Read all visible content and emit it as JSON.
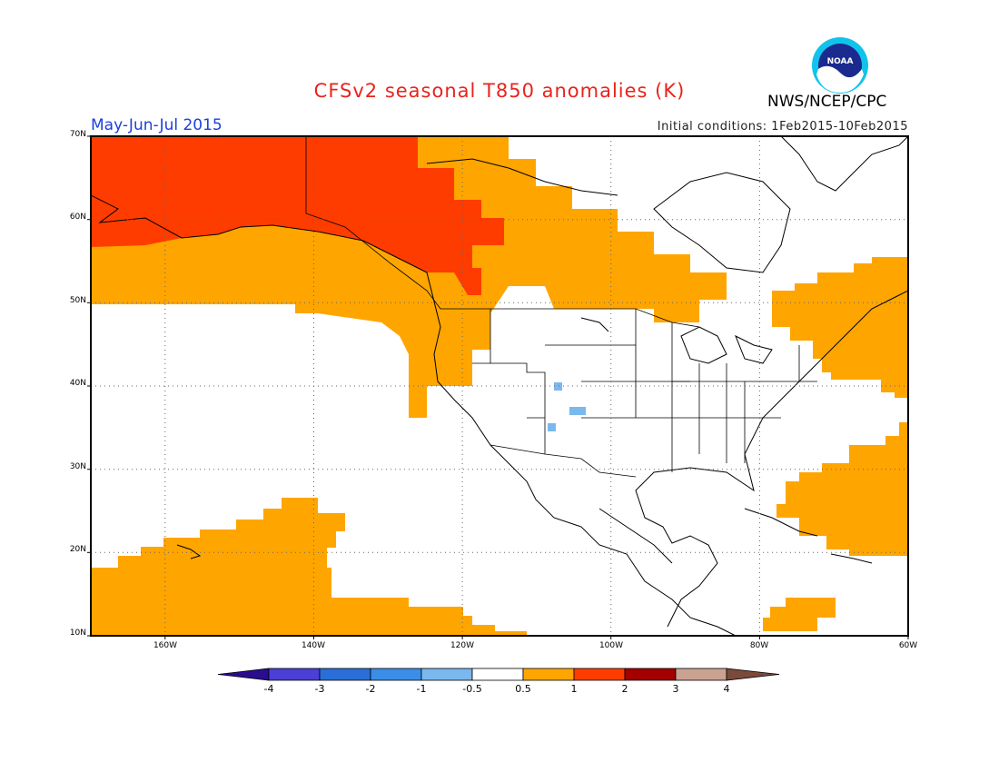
{
  "title": "CFSv2 seasonal T850 anomalies (K)",
  "period": "May-Jun-Jul 2015",
  "initial_conditions": "Initial conditions: 1Feb2015-10Feb2015",
  "agency": "NWS/NCEP/CPC",
  "logo_text": "NOAA",
  "map": {
    "projection": "lat-lon",
    "lon_range": [
      -170,
      -60
    ],
    "lat_range": [
      10,
      70
    ],
    "lat_labels": [
      "10N",
      "20N",
      "30N",
      "40N",
      "50N",
      "60N",
      "70N"
    ],
    "lon_labels": [
      "160W",
      "140W",
      "120W",
      "100W",
      "80W",
      "60W"
    ],
    "grid": true
  },
  "colorbar": {
    "labels": [
      "-4",
      "-3",
      "-2",
      "-1",
      "-0.5",
      "0.5",
      "1",
      "2",
      "3",
      "4"
    ],
    "colors": [
      "#2a0d8f",
      "#4b3fd6",
      "#2a6ed8",
      "#3a8ee8",
      "#7ab8ee",
      "#ffffff",
      "#ffa500",
      "#ff3c00",
      "#a30000",
      "#c9a292",
      "#7a4a3a"
    ]
  },
  "icons": {
    "logo": "noaa-logo-icon"
  }
}
